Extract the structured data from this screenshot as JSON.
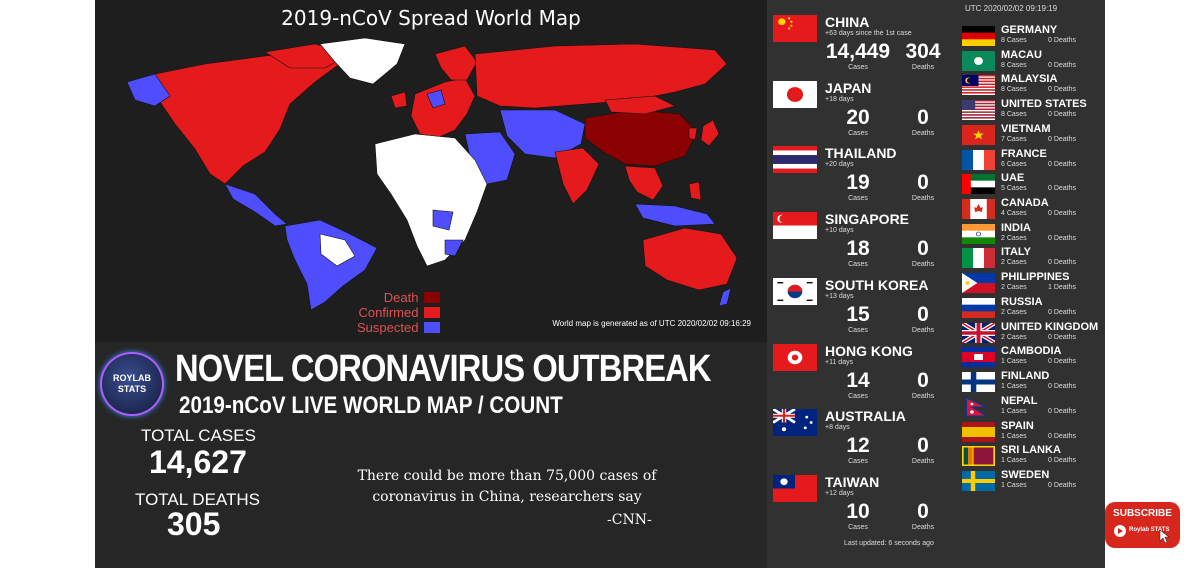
{
  "map": {
    "title": "2019-nCoV Spread World Map",
    "legend": [
      {
        "label": "Death",
        "color": "#8b0000"
      },
      {
        "label": "Confirmed",
        "color": "#e41a1c"
      },
      {
        "label": "Suspected",
        "color": "#4e4eff"
      }
    ],
    "note": "World map is generated as of UTC 2020/02/02 09:16:29"
  },
  "banner": {
    "logo": "ROYLAB STATS",
    "headline": "NOVEL CORONAVIRUS OUTBREAK",
    "subheadline": "2019-nCoV LIVE WORLD MAP / COUNT"
  },
  "totals": {
    "cases_label": "TOTAL CASES",
    "cases": "14,627",
    "deaths_label": "TOTAL DEATHS",
    "deaths": "305"
  },
  "quote": {
    "text": "There could be more than 75,000 cases of coronavirus in China, researchers say",
    "source": "-CNN-"
  },
  "panel": {
    "utc": "UTC 2020/02/02 09:19:19",
    "cases_word": "Cases",
    "deaths_word": "Deaths",
    "last_updated": "Last updated: 6 seconds ago",
    "big": [
      {
        "name": "CHINA",
        "days": "+63 days since the 1st case",
        "cases": "14,449",
        "deaths": "304",
        "flag": "cn"
      },
      {
        "name": "JAPAN",
        "days": "+18 days",
        "cases": "20",
        "deaths": "0",
        "flag": "jp"
      },
      {
        "name": "THAILAND",
        "days": "+20 days",
        "cases": "19",
        "deaths": "0",
        "flag": "th"
      },
      {
        "name": "SINGAPORE",
        "days": "+10 days",
        "cases": "18",
        "deaths": "0",
        "flag": "sg"
      },
      {
        "name": "SOUTH KOREA",
        "days": "+13 days",
        "cases": "15",
        "deaths": "0",
        "flag": "kr"
      },
      {
        "name": "HONG KONG",
        "days": "+11 days",
        "cases": "14",
        "deaths": "0",
        "flag": "hk"
      },
      {
        "name": "AUSTRALIA",
        "days": "+8 days",
        "cases": "12",
        "deaths": "0",
        "flag": "au"
      },
      {
        "name": "TAIWAN",
        "days": "+12 days",
        "cases": "10",
        "deaths": "0",
        "flag": "tw"
      }
    ],
    "small": [
      {
        "name": "GERMANY",
        "cases": "8 Cases",
        "deaths": "0 Deaths",
        "flag": "de"
      },
      {
        "name": "MACAU",
        "cases": "8 Cases",
        "deaths": "0 Deaths",
        "flag": "mo"
      },
      {
        "name": "MALAYSIA",
        "cases": "8 Cases",
        "deaths": "0 Deaths",
        "flag": "my"
      },
      {
        "name": "UNITED STATES",
        "cases": "8 Cases",
        "deaths": "0 Deaths",
        "flag": "us"
      },
      {
        "name": "VIETNAM",
        "cases": "7 Cases",
        "deaths": "0 Deaths",
        "flag": "vn"
      },
      {
        "name": "FRANCE",
        "cases": "6 Cases",
        "deaths": "0 Deaths",
        "flag": "fr"
      },
      {
        "name": "UAE",
        "cases": "5 Cases",
        "deaths": "0 Deaths",
        "flag": "ae"
      },
      {
        "name": "CANADA",
        "cases": "4 Cases",
        "deaths": "0 Deaths",
        "flag": "ca"
      },
      {
        "name": "INDIA",
        "cases": "2 Cases",
        "deaths": "0 Deaths",
        "flag": "in"
      },
      {
        "name": "ITALY",
        "cases": "2 Cases",
        "deaths": "0 Deaths",
        "flag": "it"
      },
      {
        "name": "PHILIPPINES",
        "cases": "2 Cases",
        "deaths": "1 Deaths",
        "flag": "ph"
      },
      {
        "name": "RUSSIA",
        "cases": "2 Cases",
        "deaths": "0 Deaths",
        "flag": "ru"
      },
      {
        "name": "UNITED KINGDOM",
        "cases": "2 Cases",
        "deaths": "0 Deaths",
        "flag": "gb"
      },
      {
        "name": "CAMBODIA",
        "cases": "1 Cases",
        "deaths": "0 Deaths",
        "flag": "kh"
      },
      {
        "name": "FINLAND",
        "cases": "1 Cases",
        "deaths": "0 Deaths",
        "flag": "fi"
      },
      {
        "name": "NEPAL",
        "cases": "1 Cases",
        "deaths": "0 Deaths",
        "flag": "np"
      },
      {
        "name": "SPAIN",
        "cases": "1 Cases",
        "deaths": "0 Deaths",
        "flag": "es"
      },
      {
        "name": "SRI LANKA",
        "cases": "1 Cases",
        "deaths": "0 Deaths",
        "flag": "lk"
      },
      {
        "name": "SWEDEN",
        "cases": "1 Cases",
        "deaths": "0 Deaths",
        "flag": "se"
      }
    ]
  },
  "subscribe": {
    "label": "SUBSCRIBE",
    "brand": "Roylab STATS"
  }
}
